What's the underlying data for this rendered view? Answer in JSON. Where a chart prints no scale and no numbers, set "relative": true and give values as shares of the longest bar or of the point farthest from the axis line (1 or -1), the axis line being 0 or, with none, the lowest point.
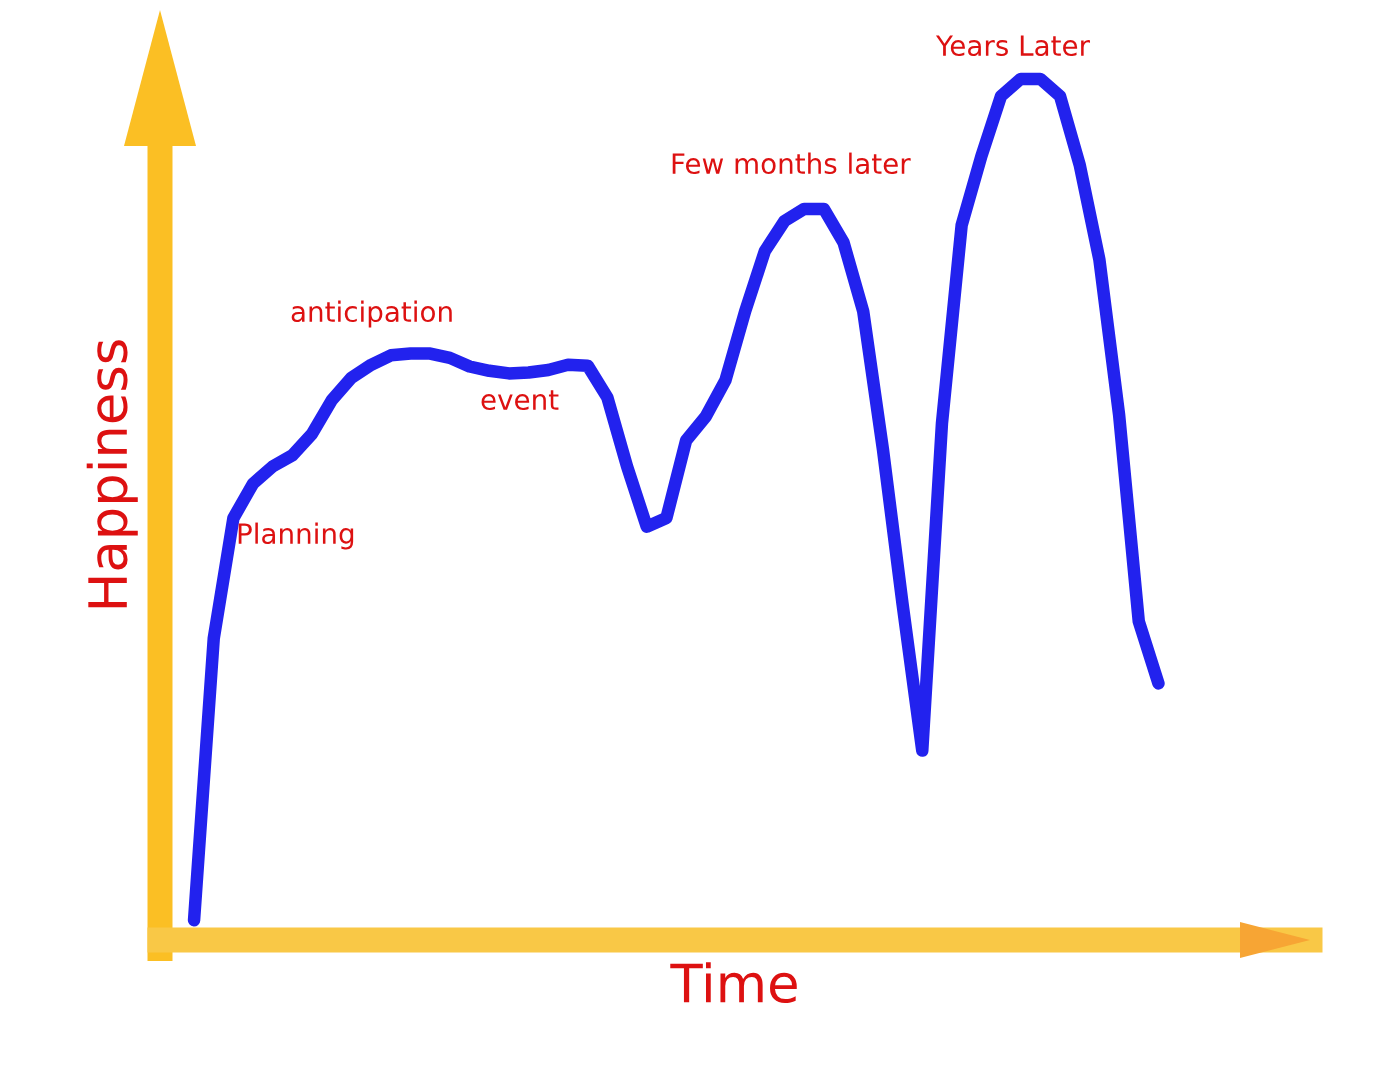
{
  "chart_data": {
    "type": "line",
    "relative": true,
    "xlabel": "Time",
    "ylabel": "Happiness",
    "categories": [
      null,
      null,
      null,
      null,
      null,
      null,
      null,
      null,
      null,
      null,
      null,
      null,
      null,
      null,
      null,
      null,
      null,
      null,
      null,
      null,
      null,
      null,
      null,
      null,
      null,
      null,
      null,
      null,
      null,
      null,
      null,
      null,
      null,
      null,
      null,
      null,
      null,
      null,
      null,
      null,
      null,
      null,
      null,
      null,
      null,
      null,
      null,
      null,
      null,
      null
    ],
    "series": [
      {
        "color": "#2222ee",
        "values": [
          0.023,
          0.35,
          0.49,
          0.53,
          0.55,
          0.563,
          0.588,
          0.627,
          0.653,
          0.668,
          0.679,
          0.681,
          0.681,
          0.676,
          0.666,
          0.661,
          0.658,
          0.659,
          0.662,
          0.668,
          0.667,
          0.63,
          0.55,
          0.48,
          0.49,
          0.58,
          0.608,
          0.65,
          0.73,
          0.8,
          0.835,
          0.849,
          0.849,
          0.81,
          0.73,
          0.57,
          0.39,
          0.22,
          0.6,
          0.83,
          0.91,
          0.98,
          1.0,
          1.0,
          0.98,
          0.9,
          0.79,
          0.61,
          0.37,
          0.298
        ]
      }
    ],
    "annotations": [
      "Planning",
      "anticipation",
      "event",
      "Few months later",
      "Years Later"
    ],
    "legend": false,
    "marker": "none",
    "line_style": "solid"
  }
}
